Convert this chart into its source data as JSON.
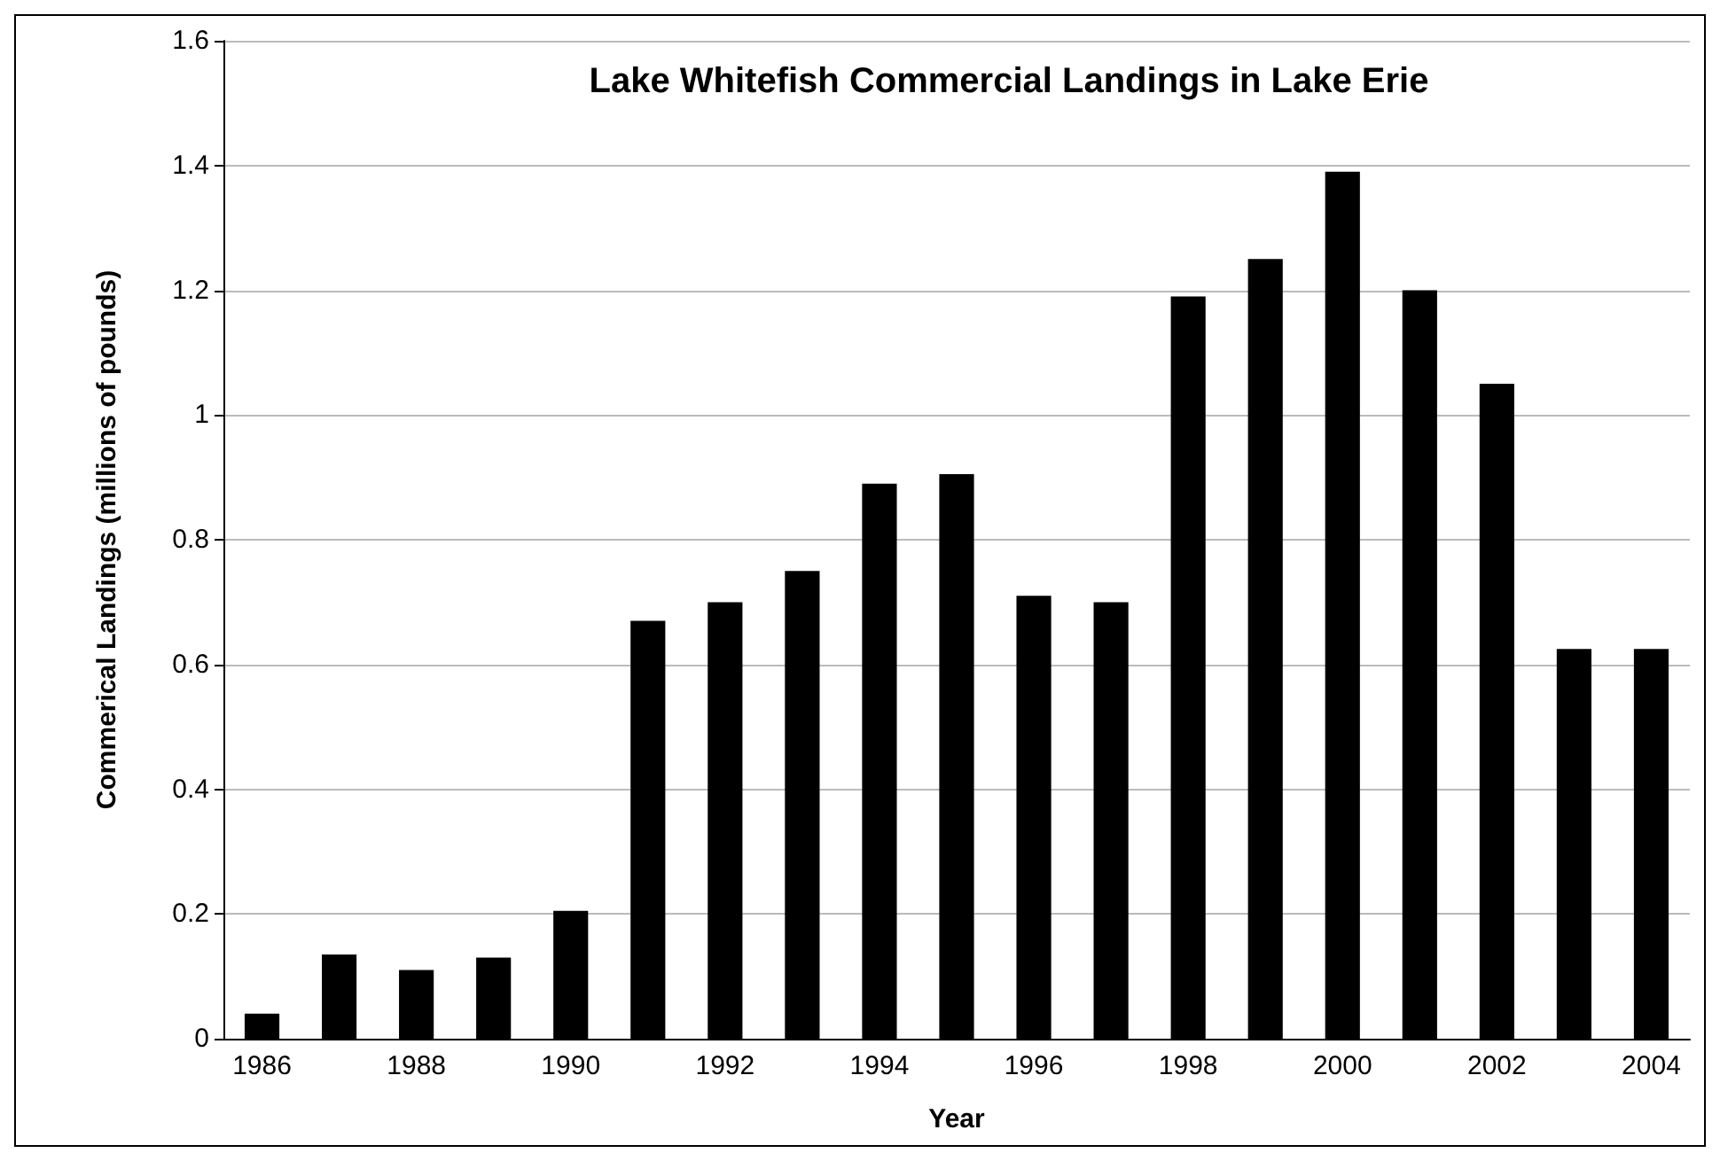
{
  "chart_data": {
    "type": "bar",
    "title": "Lake Whitefish Commercial Landings in Lake Erie",
    "xlabel": "Year",
    "ylabel": "Commerical Landings (millions of pounds)",
    "categories": [
      "1986",
      null,
      "1988",
      null,
      "1990",
      null,
      "1992",
      null,
      "1994",
      null,
      "1996",
      null,
      "1998",
      null,
      "2000",
      null,
      "2002",
      null,
      "2004"
    ],
    "values": [
      0.04,
      0.135,
      0.11,
      0.13,
      0.205,
      0.67,
      0.7,
      0.75,
      0.89,
      0.905,
      0.71,
      0.7,
      1.19,
      1.25,
      1.39,
      1.2,
      1.05,
      0.625,
      0.625
    ],
    "color": "#000000",
    "ylim": [
      0,
      1.6
    ],
    "yticks": [
      0,
      0.2,
      0.4,
      0.6,
      0.8,
      1,
      1.2,
      1.4,
      1.6
    ],
    "grid": "y"
  }
}
